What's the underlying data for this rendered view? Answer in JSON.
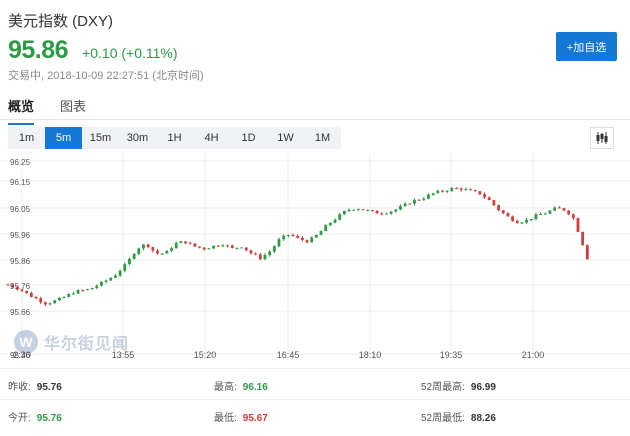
{
  "header": {
    "title": "美元指数 (DXY)",
    "price": "95.86",
    "change": "+0.10 (+0.11%)",
    "status": "交易中, 2018-10-09 22:27:51 (北京时间)",
    "add_button": "+加自选"
  },
  "tabs": [
    "概览",
    "图表"
  ],
  "periods": [
    "1m",
    "5m",
    "15m",
    "30m",
    "1H",
    "4H",
    "1D",
    "1W",
    "1M"
  ],
  "active_period": "5m",
  "icons": {
    "chart_type": "candlestick-icon",
    "watermark": "wallstreetcn-logo"
  },
  "watermark": {
    "glyph": "W",
    "text": "华尔街见闻"
  },
  "colors": {
    "up": "#2a9d44",
    "down": "#d63b3b",
    "accent": "#1478d4"
  },
  "chart_data": {
    "type": "candlestick",
    "y_ticks": [
      "96.25",
      "96.15",
      "96.05",
      "95.96",
      "95.86",
      "95.76",
      "95.66",
      "95.46"
    ],
    "x_ticks": [
      "12:30",
      "13:55",
      "15:20",
      "16:45",
      "18:10",
      "19:35",
      "21:00"
    ],
    "x_first_tick_visible_fragment": "2:30",
    "last_price": 95.86,
    "ylim": [
      95.46,
      96.27
    ],
    "grid": true,
    "close_path": [
      [
        0,
        95.75
      ],
      [
        5,
        95.73
      ],
      [
        10,
        95.7
      ],
      [
        16,
        95.67
      ],
      [
        22,
        95.69
      ],
      [
        28,
        95.72
      ],
      [
        34,
        95.73
      ],
      [
        40,
        95.76
      ],
      [
        45,
        95.79
      ],
      [
        50,
        95.84
      ],
      [
        54,
        95.9
      ],
      [
        58,
        95.92
      ],
      [
        62,
        95.88
      ],
      [
        66,
        95.88
      ],
      [
        70,
        95.92
      ],
      [
        74,
        95.93
      ],
      [
        78,
        95.91
      ],
      [
        82,
        95.9
      ],
      [
        86,
        95.91
      ],
      [
        90,
        95.92
      ],
      [
        94,
        95.9
      ],
      [
        98,
        95.91
      ],
      [
        102,
        95.88
      ],
      [
        106,
        95.86
      ],
      [
        110,
        95.89
      ],
      [
        114,
        95.94
      ],
      [
        118,
        95.96
      ],
      [
        122,
        95.94
      ],
      [
        126,
        95.93
      ],
      [
        130,
        95.96
      ],
      [
        134,
        96.0
      ],
      [
        138,
        96.03
      ],
      [
        142,
        96.06
      ],
      [
        146,
        96.07
      ],
      [
        150,
        96.06
      ],
      [
        154,
        96.05
      ],
      [
        158,
        96.05
      ],
      [
        162,
        96.06
      ],
      [
        166,
        96.08
      ],
      [
        170,
        96.1
      ],
      [
        174,
        96.11
      ],
      [
        178,
        96.13
      ],
      [
        182,
        96.14
      ],
      [
        186,
        96.15
      ],
      [
        190,
        96.15
      ],
      [
        194,
        96.14
      ],
      [
        198,
        96.13
      ],
      [
        202,
        96.1
      ],
      [
        206,
        96.06
      ],
      [
        210,
        96.03
      ],
      [
        214,
        96.01
      ],
      [
        218,
        96.02
      ],
      [
        222,
        96.04
      ],
      [
        226,
        96.05
      ],
      [
        230,
        96.07
      ],
      [
        234,
        96.06
      ],
      [
        237,
        96.03
      ],
      [
        240,
        95.95
      ],
      [
        243,
        95.86
      ]
    ]
  },
  "stats": {
    "prev_close": {
      "label": "昨收:",
      "value": "95.76"
    },
    "open": {
      "label": "今开:",
      "value": "95.76"
    },
    "high": {
      "label": "最高:",
      "value": "96.16"
    },
    "low": {
      "label": "最低:",
      "value": "95.67"
    },
    "high_52w": {
      "label": "52周最高:",
      "value": "96.99"
    },
    "low_52w": {
      "label": "52周最低:",
      "value": "88.26"
    }
  }
}
